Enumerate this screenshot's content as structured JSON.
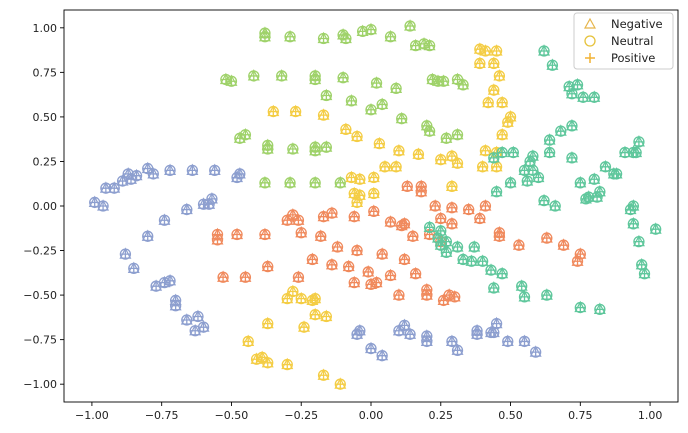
{
  "chart_data": {
    "type": "scatter",
    "title": "",
    "xlabel": "",
    "ylabel": "",
    "xlim": [
      -1.1,
      1.1
    ],
    "ylim": [
      -1.1,
      1.1
    ],
    "xticks": [
      -1.0,
      -0.75,
      -0.5,
      -0.25,
      0.0,
      0.25,
      0.5,
      0.75,
      1.0
    ],
    "xtick_labels": [
      "−1.00",
      "−0.75",
      "−0.50",
      "−0.25",
      "0.00",
      "0.25",
      "0.50",
      "0.75",
      "1.00"
    ],
    "yticks": [
      1.0,
      0.75,
      0.5,
      0.25,
      0.0,
      -0.25,
      -0.5,
      -0.75,
      -1.0
    ],
    "ytick_labels": [
      "1.00",
      "0.75",
      "0.50",
      "0.25",
      "0.00",
      "−0.25",
      "−0.50",
      "−0.75",
      "−1.00"
    ],
    "grid": false,
    "legend": {
      "placement": "top-right",
      "entries": [
        {
          "label": "Negative",
          "marker": "triangle",
          "color": "#e6b54a"
        },
        {
          "label": "Neutral",
          "marker": "circle",
          "color": "#e6c23a"
        },
        {
          "label": "Positive",
          "marker": "plus",
          "color": "#f2b233"
        }
      ]
    },
    "cluster_colors": {
      "green": "#9fd26a",
      "yellow": "#f4cd45",
      "orange": "#f08a5d",
      "teal": "#5fc79c",
      "blue": "#8d9fcf"
    },
    "series": [
      {
        "cluster": "green",
        "points": [
          [
            -0.38,
            0.97
          ],
          [
            -0.38,
            0.95
          ],
          [
            -0.29,
            0.95
          ],
          [
            -0.17,
            0.94
          ],
          [
            -0.1,
            0.96
          ],
          [
            -0.09,
            0.94
          ],
          [
            -0.03,
            0.98
          ],
          [
            0.0,
            0.99
          ],
          [
            0.07,
            0.95
          ],
          [
            0.14,
            1.01
          ],
          [
            0.16,
            0.9
          ],
          [
            0.19,
            0.91
          ],
          [
            0.21,
            0.9
          ],
          [
            -0.52,
            0.71
          ],
          [
            -0.5,
            0.7
          ],
          [
            -0.42,
            0.73
          ],
          [
            -0.32,
            0.73
          ],
          [
            -0.2,
            0.73
          ],
          [
            -0.2,
            0.71
          ],
          [
            -0.1,
            0.72
          ],
          [
            0.02,
            0.69
          ],
          [
            0.09,
            0.66
          ],
          [
            0.22,
            0.71
          ],
          [
            0.24,
            0.7
          ],
          [
            0.26,
            0.7
          ],
          [
            0.31,
            0.71
          ],
          [
            0.33,
            0.68
          ],
          [
            -0.16,
            0.62
          ],
          [
            -0.07,
            0.59
          ],
          [
            0.0,
            0.54
          ],
          [
            0.04,
            0.57
          ],
          [
            0.11,
            0.49
          ],
          [
            0.2,
            0.45
          ],
          [
            0.21,
            0.42
          ],
          [
            -0.45,
            0.4
          ],
          [
            -0.47,
            0.38
          ],
          [
            -0.37,
            0.34
          ],
          [
            -0.37,
            0.32
          ],
          [
            -0.28,
            0.32
          ],
          [
            -0.2,
            0.31
          ],
          [
            -0.2,
            0.33
          ],
          [
            -0.16,
            0.33
          ],
          [
            -0.38,
            0.13
          ],
          [
            -0.29,
            0.13
          ],
          [
            -0.2,
            0.13
          ],
          [
            -0.11,
            0.13
          ],
          [
            0.27,
            0.38
          ],
          [
            0.31,
            0.4
          ]
        ]
      },
      {
        "cluster": "yellow",
        "points": [
          [
            0.39,
            0.88
          ],
          [
            0.41,
            0.87
          ],
          [
            0.45,
            0.87
          ],
          [
            0.39,
            0.8
          ],
          [
            0.44,
            0.8
          ],
          [
            0.46,
            0.73
          ],
          [
            0.44,
            0.65
          ],
          [
            0.47,
            0.58
          ],
          [
            0.42,
            0.58
          ],
          [
            0.5,
            0.5
          ],
          [
            0.49,
            0.47
          ],
          [
            0.47,
            0.4
          ],
          [
            0.41,
            0.31
          ],
          [
            0.45,
            0.3
          ],
          [
            0.4,
            0.22
          ],
          [
            0.45,
            0.22
          ],
          [
            0.31,
            0.24
          ],
          [
            0.29,
            0.28
          ],
          [
            0.25,
            0.26
          ],
          [
            0.29,
            0.11
          ],
          [
            -0.35,
            0.53
          ],
          [
            -0.27,
            0.53
          ],
          [
            -0.17,
            0.51
          ],
          [
            -0.09,
            0.43
          ],
          [
            -0.05,
            0.39
          ],
          [
            0.03,
            0.35
          ],
          [
            0.1,
            0.31
          ],
          [
            0.17,
            0.29
          ],
          [
            -0.07,
            0.16
          ],
          [
            -0.04,
            0.15
          ],
          [
            -0.06,
            0.07
          ],
          [
            -0.04,
            0.06
          ],
          [
            -0.05,
            0.02
          ],
          [
            0.01,
            0.07
          ],
          [
            0.05,
            0.22
          ],
          [
            0.09,
            0.22
          ],
          [
            0.01,
            0.16
          ],
          [
            -0.3,
            -0.52
          ],
          [
            -0.28,
            -0.48
          ],
          [
            -0.25,
            -0.52
          ],
          [
            -0.21,
            -0.53
          ],
          [
            -0.2,
            -0.52
          ],
          [
            -0.2,
            -0.61
          ],
          [
            -0.16,
            -0.62
          ],
          [
            -0.24,
            -0.68
          ],
          [
            -0.37,
            -0.66
          ],
          [
            -0.44,
            -0.76
          ],
          [
            -0.41,
            -0.86
          ],
          [
            -0.39,
            -0.85
          ],
          [
            -0.37,
            -0.88
          ],
          [
            -0.3,
            -0.89
          ],
          [
            -0.17,
            -0.95
          ],
          [
            -0.11,
            -1.0
          ]
        ]
      },
      {
        "cluster": "orange",
        "points": [
          [
            -0.17,
            -0.06
          ],
          [
            -0.14,
            -0.04
          ],
          [
            -0.06,
            -0.06
          ],
          [
            0.01,
            -0.03
          ],
          [
            0.07,
            -0.09
          ],
          [
            0.12,
            -0.1
          ],
          [
            0.11,
            -0.11
          ],
          [
            0.15,
            -0.17
          ],
          [
            0.21,
            -0.16
          ],
          [
            0.25,
            -0.2
          ],
          [
            0.29,
            -0.1
          ],
          [
            0.25,
            -0.07
          ],
          [
            -0.28,
            -0.05
          ],
          [
            -0.26,
            -0.08
          ],
          [
            -0.3,
            -0.08
          ],
          [
            -0.38,
            -0.16
          ],
          [
            -0.48,
            -0.16
          ],
          [
            -0.55,
            -0.16
          ],
          [
            -0.55,
            -0.19
          ],
          [
            0.13,
            0.11
          ],
          [
            0.18,
            0.11
          ],
          [
            0.18,
            0.08
          ],
          [
            0.23,
            0.0
          ],
          [
            0.29,
            -0.01
          ],
          [
            0.35,
            -0.02
          ],
          [
            0.41,
            0.0
          ],
          [
            0.39,
            -0.07
          ],
          [
            0.46,
            -0.15
          ],
          [
            -0.25,
            -0.15
          ],
          [
            -0.18,
            -0.17
          ],
          [
            -0.12,
            -0.23
          ],
          [
            -0.05,
            -0.25
          ],
          [
            0.04,
            -0.27
          ],
          [
            0.12,
            -0.3
          ],
          [
            -0.37,
            -0.34
          ],
          [
            -0.21,
            -0.3
          ],
          [
            -0.14,
            -0.33
          ],
          [
            -0.08,
            -0.34
          ],
          [
            -0.01,
            -0.37
          ],
          [
            0.07,
            -0.39
          ],
          [
            0.16,
            -0.38
          ],
          [
            -0.53,
            -0.4
          ],
          [
            -0.45,
            -0.4
          ],
          [
            -0.26,
            -0.4
          ],
          [
            -0.06,
            -0.43
          ],
          [
            0.0,
            -0.44
          ],
          [
            0.02,
            -0.43
          ],
          [
            0.1,
            -0.5
          ],
          [
            0.2,
            -0.47
          ],
          [
            0.2,
            -0.5
          ],
          [
            0.28,
            -0.5
          ],
          [
            0.26,
            -0.53
          ],
          [
            0.3,
            -0.51
          ],
          [
            0.46,
            -0.17
          ],
          [
            0.53,
            -0.22
          ],
          [
            0.63,
            -0.18
          ],
          [
            0.69,
            -0.22
          ],
          [
            0.75,
            -0.27
          ],
          [
            0.74,
            -0.31
          ]
        ]
      },
      {
        "cluster": "teal",
        "points": [
          [
            0.62,
            0.87
          ],
          [
            0.65,
            0.79
          ],
          [
            0.71,
            0.67
          ],
          [
            0.72,
            0.63
          ],
          [
            0.74,
            0.68
          ],
          [
            0.76,
            0.61
          ],
          [
            0.8,
            0.61
          ],
          [
            0.72,
            0.45
          ],
          [
            0.68,
            0.42
          ],
          [
            0.64,
            0.37
          ],
          [
            0.72,
            0.27
          ],
          [
            0.64,
            0.3
          ],
          [
            0.58,
            0.28
          ],
          [
            0.57,
            0.25
          ],
          [
            0.58,
            0.2
          ],
          [
            0.55,
            0.2
          ],
          [
            0.6,
            0.16
          ],
          [
            0.51,
            0.3
          ],
          [
            0.47,
            0.3
          ],
          [
            0.44,
            0.27
          ],
          [
            0.5,
            0.13
          ],
          [
            0.45,
            0.08
          ],
          [
            0.78,
            0.05
          ],
          [
            0.81,
            0.05
          ],
          [
            0.82,
            0.08
          ],
          [
            0.84,
            0.22
          ],
          [
            0.88,
            0.18
          ],
          [
            0.8,
            0.15
          ],
          [
            0.87,
            0.18
          ],
          [
            0.91,
            0.3
          ],
          [
            0.94,
            0.3
          ],
          [
            0.96,
            0.36
          ],
          [
            0.95,
            0.3
          ],
          [
            0.56,
            0.14
          ],
          [
            0.62,
            0.03
          ],
          [
            0.66,
            0.0
          ],
          [
            0.75,
            0.13
          ],
          [
            0.77,
            0.04
          ],
          [
            0.21,
            -0.12
          ],
          [
            0.24,
            -0.18
          ],
          [
            0.25,
            -0.14
          ],
          [
            0.27,
            -0.2
          ],
          [
            0.31,
            -0.23
          ],
          [
            0.37,
            -0.23
          ],
          [
            0.33,
            -0.3
          ],
          [
            0.36,
            -0.31
          ],
          [
            0.4,
            -0.31
          ],
          [
            0.43,
            -0.36
          ],
          [
            0.47,
            -0.38
          ],
          [
            0.27,
            -0.26
          ],
          [
            0.25,
            -0.22
          ],
          [
            0.44,
            -0.46
          ],
          [
            0.54,
            -0.45
          ],
          [
            0.55,
            -0.51
          ],
          [
            0.63,
            -0.5
          ],
          [
            0.75,
            -0.57
          ],
          [
            0.82,
            -0.58
          ],
          [
            0.94,
            -0.1
          ],
          [
            0.96,
            -0.2
          ],
          [
            1.02,
            -0.13
          ],
          [
            0.97,
            -0.33
          ],
          [
            0.98,
            -0.38
          ],
          [
            0.94,
            0.0
          ],
          [
            0.93,
            -0.02
          ]
        ]
      },
      {
        "cluster": "blue",
        "points": [
          [
            -0.8,
            0.21
          ],
          [
            -0.78,
            0.18
          ],
          [
            -0.72,
            0.2
          ],
          [
            -0.64,
            0.2
          ],
          [
            -0.56,
            0.2
          ],
          [
            -0.47,
            0.18
          ],
          [
            -0.48,
            0.16
          ],
          [
            -0.95,
            0.1
          ],
          [
            -0.92,
            0.1
          ],
          [
            -0.89,
            0.14
          ],
          [
            -0.87,
            0.18
          ],
          [
            -0.86,
            0.15
          ],
          [
            -0.84,
            0.17
          ],
          [
            -0.99,
            0.02
          ],
          [
            -0.96,
            0.0
          ],
          [
            -0.6,
            0.01
          ],
          [
            -0.58,
            0.01
          ],
          [
            -0.57,
            0.04
          ],
          [
            -0.66,
            -0.02
          ],
          [
            -0.74,
            -0.08
          ],
          [
            -0.8,
            -0.17
          ],
          [
            -0.88,
            -0.27
          ],
          [
            -0.85,
            -0.35
          ],
          [
            -0.77,
            -0.45
          ],
          [
            -0.74,
            -0.43
          ],
          [
            -0.72,
            -0.42
          ],
          [
            -0.7,
            -0.53
          ],
          [
            -0.7,
            -0.56
          ],
          [
            -0.66,
            -0.64
          ],
          [
            -0.62,
            -0.62
          ],
          [
            -0.63,
            -0.7
          ],
          [
            -0.6,
            -0.68
          ],
          [
            -0.05,
            -0.72
          ],
          [
            -0.04,
            -0.7
          ],
          [
            0.0,
            -0.8
          ],
          [
            0.04,
            -0.84
          ],
          [
            0.1,
            -0.7
          ],
          [
            0.12,
            -0.67
          ],
          [
            0.14,
            -0.72
          ],
          [
            0.2,
            -0.73
          ],
          [
            0.2,
            -0.76
          ],
          [
            0.29,
            -0.76
          ],
          [
            0.31,
            -0.81
          ],
          [
            0.38,
            -0.7
          ],
          [
            0.38,
            -0.72
          ],
          [
            0.45,
            -0.66
          ],
          [
            0.44,
            -0.71
          ],
          [
            0.49,
            -0.76
          ],
          [
            0.55,
            -0.76
          ],
          [
            0.59,
            -0.82
          ],
          [
            0.43,
            -0.71
          ]
        ]
      }
    ]
  }
}
